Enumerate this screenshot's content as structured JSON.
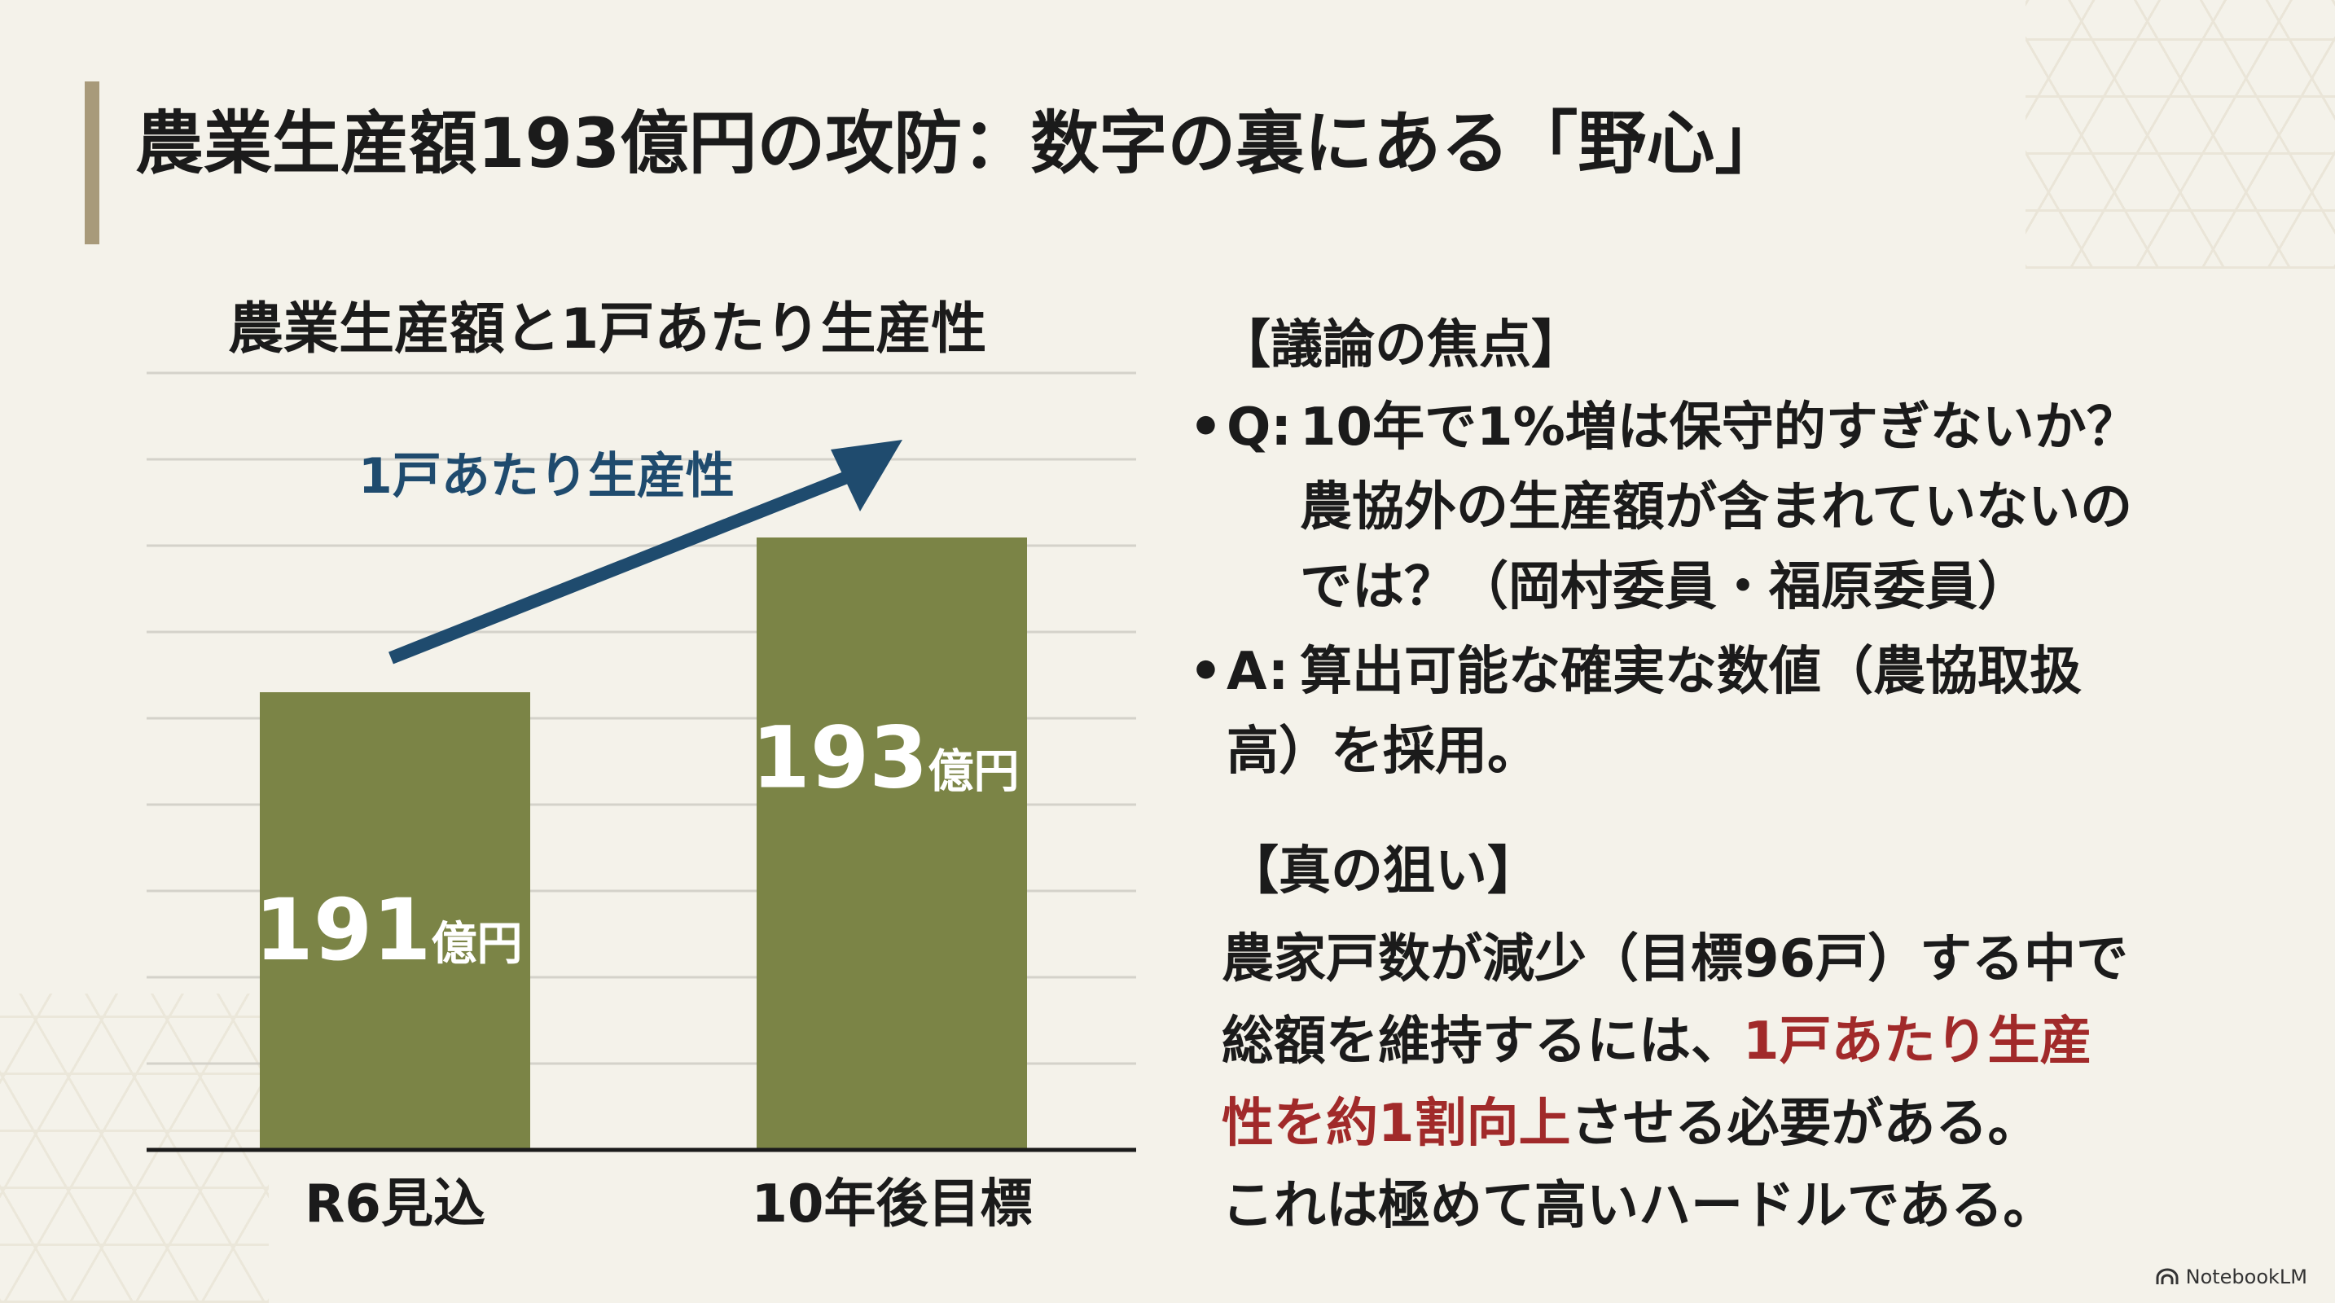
{
  "title": "農業生産額193億円の攻防：数字の裏にある「野心」",
  "chart_data": {
    "type": "bar",
    "title": "農業生産額と1戸あたり生産性",
    "categories": [
      "R6見込",
      "10年後目標"
    ],
    "values": [
      191,
      193
    ],
    "value_labels": [
      "191",
      "193"
    ],
    "value_unit": "億円",
    "xlabel": "",
    "ylabel": "",
    "grid": true,
    "annotation": {
      "label": "1戸あたり生産性",
      "kind": "upward-arrow"
    },
    "colors": {
      "bar": "#7b8446",
      "arrow": "#1f4b6e"
    }
  },
  "debate": {
    "heading": "【議論の焦点】",
    "q_label": "Q:",
    "q_lines": [
      "10年で1%増は保守的すぎないか？",
      "農協外の生産額が含まれていないの",
      "では？（岡村委員・福原委員）"
    ],
    "a_label": "A:",
    "a_lines": [
      "算出可能な確実な数値（農協取扱",
      "高）を採用。"
    ]
  },
  "aim": {
    "heading": "【真の狙い】",
    "line1": "農家戸数が減少（目標96戸）する中で",
    "line2_plain": "総額を維持するには、",
    "line2_hl": "1戸あたり生産",
    "line3_hl": "性を約1割向上",
    "line3_plain": "させる必要がある。",
    "line4": "これは極めて高いハードルである。"
  },
  "watermark": "NotebookLM",
  "colors": {
    "accent_bar": "#a89a7a",
    "highlight": "#a12a2a"
  }
}
